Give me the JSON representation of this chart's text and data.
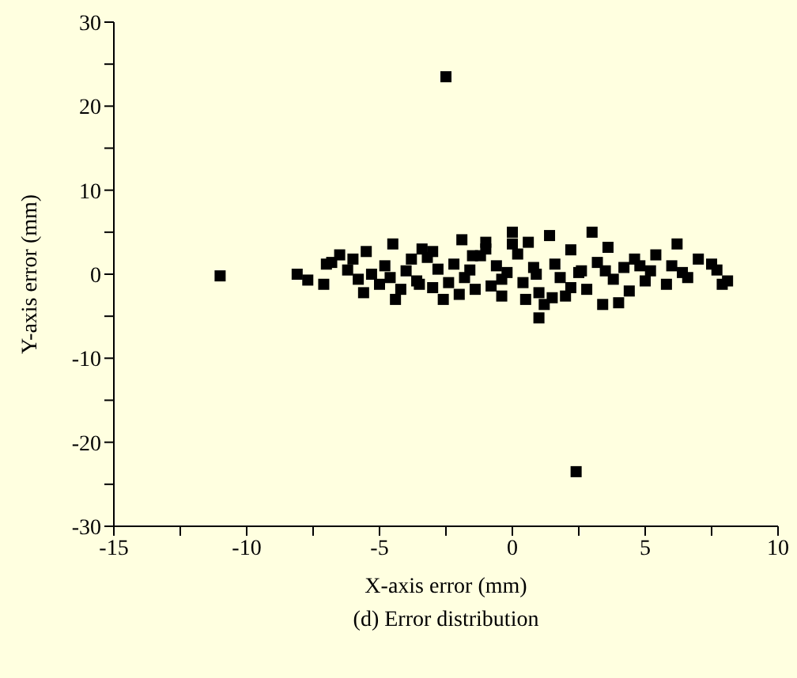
{
  "chart_data": {
    "type": "scatter",
    "xlabel": "X-axis error (mm)",
    "ylabel": "Y-axis error (mm)",
    "annotations": [
      "(d) Error distribution"
    ],
    "xlim": [
      -15,
      10
    ],
    "xticks": [
      -15,
      {
        "value": -12.5,
        "label": null
      },
      -10,
      {
        "value": -7.5,
        "label": null
      },
      -5,
      {
        "value": -2.5,
        "label": null
      },
      0,
      {
        "value": 2.5,
        "label": null
      },
      5,
      {
        "value": 7.5,
        "label": null
      },
      10
    ],
    "ylim": [
      -30,
      30
    ],
    "yticks": [
      -30,
      {
        "value": -25,
        "label": null
      },
      -20,
      {
        "value": -15,
        "label": null
      },
      -10,
      {
        "value": -5,
        "label": null
      },
      0,
      {
        "value": 5,
        "label": null
      },
      10,
      {
        "value": 15,
        "label": null
      },
      20,
      {
        "value": 25,
        "label": null
      },
      30
    ],
    "marker": "square",
    "grid": false,
    "legend": false,
    "series": [
      {
        "color": "#000000",
        "x": [
          -2.5,
          2.4,
          -11.0,
          -8.1,
          -7.7,
          -7.1,
          -6.8,
          -6.5,
          -6.0,
          -5.5,
          -5.3,
          -5.0,
          -4.5,
          -4.4,
          -3.8,
          -3.5,
          -3.0,
          -2.6,
          -1.9,
          -1.6,
          -1.4,
          -1.0,
          0,
          0,
          0.6,
          1.4,
          1.2,
          1.0,
          2.2,
          3.0,
          3.6,
          3.4,
          4.0,
          4.6,
          5.4,
          6.2,
          5.8,
          7.0,
          7.7,
          7.5,
          7.9,
          8.1,
          -7.0,
          -6.2,
          -5.8,
          -4.8,
          -4.2,
          -4.0,
          -3.6,
          -3.2,
          -3.0,
          -2.8,
          -2.2,
          -2.0,
          -1.8,
          -1.2,
          -0.8,
          -0.6,
          -0.4,
          -0.2,
          0.2,
          0.4,
          0.8,
          1.0,
          1.6,
          1.8,
          2.0,
          2.6,
          2.8,
          3.2,
          3.8,
          4.2,
          4.4,
          5.0,
          5.2,
          6.0,
          6.6,
          -3.4,
          -1.0,
          0.5,
          1.5,
          2.5,
          -2.4,
          -0.4,
          0.9,
          3.5,
          -4.6,
          -5.6,
          4.8,
          6.4,
          -1.5,
          2.2
        ],
        "values": [
          23.5,
          -23.5,
          -0.2,
          0,
          -0.7,
          -1.2,
          1.4,
          2.3,
          1.8,
          2.7,
          0,
          -1.2,
          3.6,
          -3,
          1.8,
          -1.2,
          2.7,
          -3,
          4.1,
          0.5,
          -1.8,
          3.8,
          5,
          3.6,
          3.8,
          4.6,
          -3.6,
          -5.2,
          2.9,
          5,
          3.2,
          -3.6,
          -3.4,
          1.8,
          2.3,
          3.6,
          -1.2,
          1.8,
          0.5,
          1.2,
          -1.2,
          -0.8,
          1.2,
          0.5,
          -0.6,
          1.0,
          -1.8,
          0.4,
          -0.8,
          2.0,
          -1.6,
          0.6,
          1.2,
          -2.4,
          -0.4,
          2.2,
          -1.4,
          1.0,
          -2.6,
          0.2,
          2.4,
          -1.0,
          0.8,
          -2.2,
          1.2,
          -0.4,
          -2.6,
          0.4,
          -1.8,
          1.4,
          -0.6,
          0.8,
          -2.0,
          -0.8,
          0.4,
          1.0,
          -0.4,
          3.0,
          3.0,
          -3.0,
          -2.8,
          0.2,
          -1.0,
          -0.6,
          0.0,
          0.4,
          -0.4,
          -2.2,
          1.0,
          0.2,
          2.2,
          -1.6
        ]
      }
    ]
  }
}
